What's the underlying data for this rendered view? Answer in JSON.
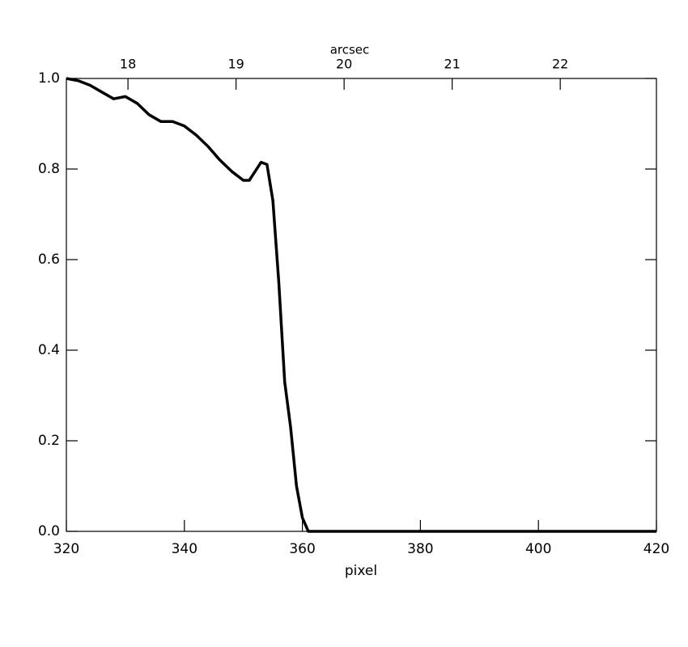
{
  "chart_data": {
    "type": "line",
    "xlabel": "pixel",
    "x2label": "arcsec",
    "x": [
      320,
      322,
      324,
      326,
      328,
      330,
      332,
      334,
      336,
      338,
      340,
      342,
      344,
      346,
      348,
      350,
      351,
      352,
      353,
      354,
      355,
      356,
      357,
      358,
      359,
      360,
      361,
      362,
      370,
      380,
      390,
      400,
      410,
      420
    ],
    "series": [
      {
        "color": "#000000",
        "values": [
          1.0,
          0.995,
          0.985,
          0.97,
          0.955,
          0.96,
          0.945,
          0.92,
          0.905,
          0.905,
          0.895,
          0.875,
          0.85,
          0.82,
          0.795,
          0.775,
          0.775,
          0.795,
          0.815,
          0.81,
          0.73,
          0.55,
          0.33,
          0.23,
          0.1,
          0.03,
          0.0,
          0.0,
          0.0,
          0.0,
          0.0,
          0.0,
          0.0,
          0.0
        ]
      }
    ],
    "xlim": [
      320,
      420
    ],
    "xticks": [
      320,
      340,
      360,
      380,
      400,
      420
    ],
    "x2lim": [
      17.43,
      22.89
    ],
    "x2ticks": [
      18,
      19,
      20,
      21,
      22
    ],
    "ylim": [
      0,
      1
    ],
    "yticks": [
      {
        "value": 0,
        "label": "0.0"
      },
      0.2,
      0.4,
      0.6,
      0.8,
      {
        "value": 1,
        "label": "1.0"
      }
    ]
  }
}
